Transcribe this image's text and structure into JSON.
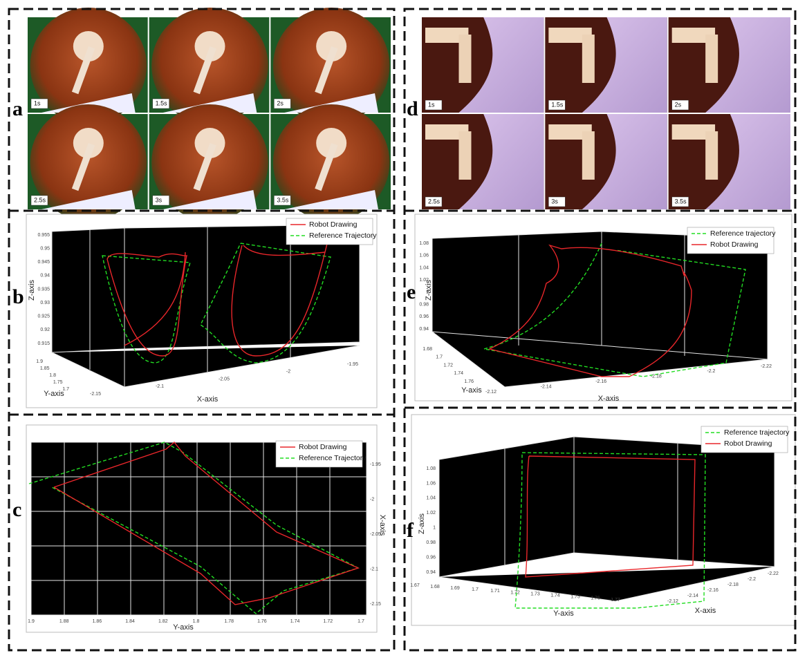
{
  "panels": [
    {
      "label": "a",
      "timestamps": [
        "1s",
        "1.5s",
        "2s",
        "2.5s",
        "3s",
        "3.5s"
      ]
    },
    {
      "label": "b",
      "legend": [
        "Robot Drawing",
        "Reference Trajectory"
      ],
      "x_axis": "X-axis",
      "y_axis": "Y-axis",
      "z_axis": "Z-axis",
      "z_ticks": [
        "0.955",
        "0.95",
        "0.945",
        "0.94",
        "0.935",
        "0.93",
        "0.925",
        "0.92",
        "0.915"
      ],
      "y_ticks": [
        "1.9",
        "1.85",
        "1.8",
        "1.75",
        "1.7"
      ],
      "x_ticks": [
        "-2.15",
        "-2.1",
        "-2.05",
        "-2",
        "-1.95"
      ]
    },
    {
      "label": "c",
      "legend": [
        "Robot Drawing",
        "Reference Trajectory"
      ],
      "x_axis": "X-axis",
      "y_axis": "Y-axis",
      "y_ticks": [
        "1.9",
        "1.88",
        "1.86",
        "1.84",
        "1.82",
        "1.8",
        "1.78",
        "1.76",
        "1.74",
        "1.72",
        "1.7"
      ],
      "x_ticks": [
        "-1.95",
        "-2",
        "-2.05",
        "-2.1",
        "-2.15"
      ]
    },
    {
      "label": "d",
      "timestamps": [
        "1s",
        "1.5s",
        "2s",
        "2.5s",
        "3s",
        "3.5s"
      ]
    },
    {
      "label": "e",
      "legend": [
        "Reference trajectory",
        "Robot Drawing"
      ],
      "x_axis": "X-axis",
      "y_axis": "Y-axis",
      "z_axis": "Z-axis",
      "z_ticks": [
        "1.08",
        "1.06",
        "1.04",
        "1.02",
        "1",
        "0.98",
        "0.96",
        "0.94"
      ],
      "y_ticks": [
        "1.68",
        "1.7",
        "1.72",
        "1.74",
        "1.76"
      ],
      "x_ticks": [
        "-2.12",
        "-2.14",
        "-2.16",
        "-2.18",
        "-2.2",
        "-2.22"
      ]
    },
    {
      "label": "f",
      "legend": [
        "Reference trajectory",
        "Robot Drawing"
      ],
      "x_axis": "X-axis",
      "y_axis": "Y-axis",
      "z_axis": "Z-axis",
      "z_ticks": [
        "1.08",
        "1.06",
        "1.04",
        "1.02",
        "1",
        "0.98",
        "0.96",
        "0.94"
      ],
      "y_ticks": [
        "1.67",
        "1.68",
        "1.69",
        "1.7",
        "1.71",
        "1.72",
        "1.73",
        "1.74",
        "1.75",
        "1.76",
        "1.77"
      ],
      "x_ticks": [
        "-2.12",
        "-2.14",
        "-2.16",
        "-2.18",
        "-2.2",
        "-2.22"
      ]
    }
  ]
}
